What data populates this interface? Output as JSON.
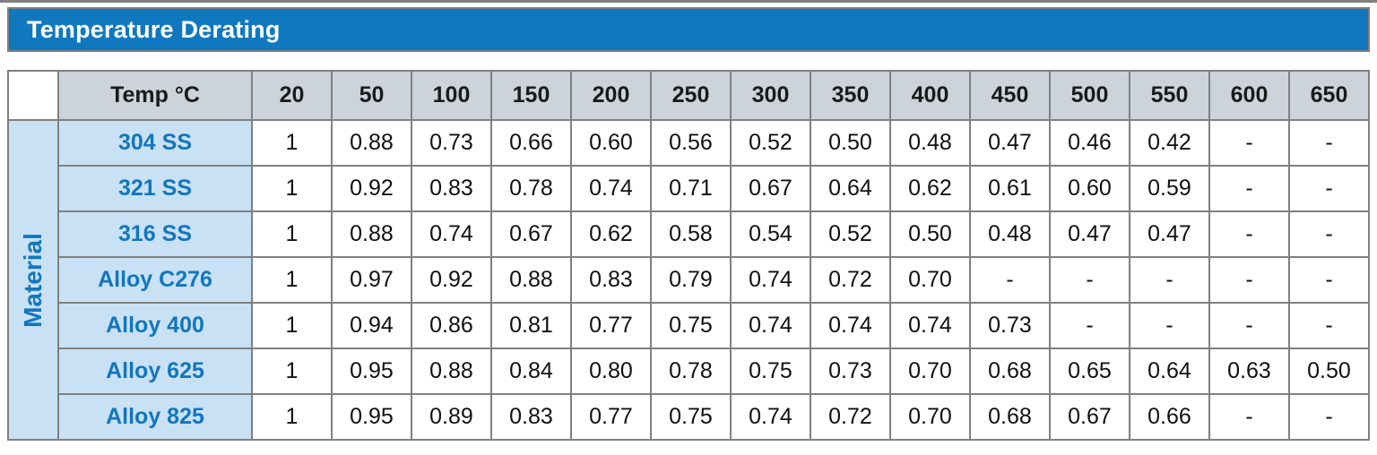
{
  "title": "Temperature Derating",
  "table": {
    "row_group_label": "Material",
    "header_label": "Temp °C",
    "temps": [
      "20",
      "50",
      "100",
      "150",
      "200",
      "250",
      "300",
      "350",
      "400",
      "450",
      "500",
      "550",
      "600",
      "650"
    ],
    "rows": [
      {
        "material": "304 SS",
        "values": [
          "1",
          "0.88",
          "0.73",
          "0.66",
          "0.60",
          "0.56",
          "0.52",
          "0.50",
          "0.48",
          "0.47",
          "0.46",
          "0.42",
          "-",
          "-"
        ]
      },
      {
        "material": "321 SS",
        "values": [
          "1",
          "0.92",
          "0.83",
          "0.78",
          "0.74",
          "0.71",
          "0.67",
          "0.64",
          "0.62",
          "0.61",
          "0.60",
          "0.59",
          "-",
          "-"
        ]
      },
      {
        "material": "316 SS",
        "values": [
          "1",
          "0.88",
          "0.74",
          "0.67",
          "0.62",
          "0.58",
          "0.54",
          "0.52",
          "0.50",
          "0.48",
          "0.47",
          "0.47",
          "-",
          "-"
        ]
      },
      {
        "material": "Alloy C276",
        "values": [
          "1",
          "0.97",
          "0.92",
          "0.88",
          "0.83",
          "0.79",
          "0.74",
          "0.72",
          "0.70",
          "-",
          "-",
          "-",
          "-",
          "-"
        ]
      },
      {
        "material": "Alloy 400",
        "values": [
          "1",
          "0.94",
          "0.86",
          "0.81",
          "0.77",
          "0.75",
          "0.74",
          "0.74",
          "0.74",
          "0.73",
          "-",
          "-",
          "-",
          "-"
        ]
      },
      {
        "material": "Alloy 625",
        "values": [
          "1",
          "0.95",
          "0.88",
          "0.84",
          "0.80",
          "0.78",
          "0.75",
          "0.73",
          "0.70",
          "0.68",
          "0.65",
          "0.64",
          "0.63",
          "0.50"
        ]
      },
      {
        "material": "Alloy 825",
        "values": [
          "1",
          "0.95",
          "0.89",
          "0.83",
          "0.77",
          "0.75",
          "0.74",
          "0.72",
          "0.70",
          "0.68",
          "0.67",
          "0.66",
          "-",
          "-"
        ]
      }
    ]
  },
  "colors": {
    "accent_blue": "#1078BE",
    "header_gray": "#CDD3DB",
    "material_light_blue": "#C8E1F5",
    "material_text_blue": "#1276BD",
    "grid_border": "#808080"
  }
}
